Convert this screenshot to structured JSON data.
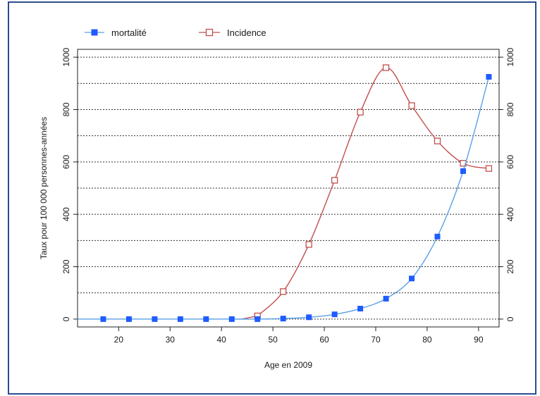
{
  "chart_data": {
    "type": "line",
    "title": "",
    "xlabel": "Age en 2009",
    "ylabel": "Taux pour 100 000 personnes-années",
    "xlim": [
      12,
      94
    ],
    "ylim": [
      -30,
      1030
    ],
    "x_ticks": [
      20,
      30,
      40,
      50,
      60,
      70,
      80,
      90
    ],
    "y_ticks": [
      0,
      200,
      400,
      600,
      800,
      1000
    ],
    "grid": true,
    "grid_style": "horizontal dotted every 100",
    "legend_position": "top-left",
    "secondary_y_axis": true,
    "series": [
      {
        "name": "mortalité",
        "color": "#1f5bff",
        "line_color": "#5aa0e8",
        "marker": "filled-square",
        "x": [
          17,
          22,
          27,
          32,
          37,
          42,
          47,
          52,
          57,
          62,
          67,
          72,
          77,
          82,
          87,
          92
        ],
        "values": [
          0,
          0,
          0,
          0,
          0,
          0,
          0,
          2,
          7,
          18,
          40,
          78,
          155,
          315,
          565,
          925
        ]
      },
      {
        "name": "Incidence",
        "color": "#c0504d",
        "line_color": "#c0504d",
        "marker": "open-square",
        "x": [
          47,
          52,
          57,
          62,
          67,
          72,
          77,
          82,
          87,
          92
        ],
        "values": [
          12,
          105,
          285,
          530,
          790,
          960,
          815,
          680,
          595,
          575
        ]
      }
    ]
  }
}
